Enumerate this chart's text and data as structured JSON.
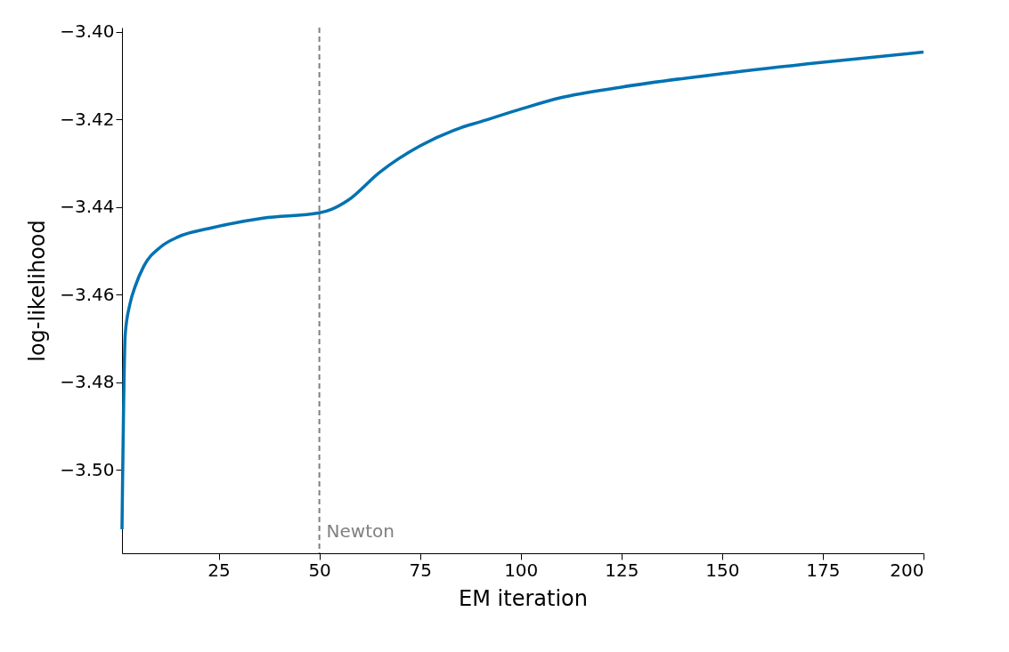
{
  "chart_data": {
    "type": "line",
    "xlabel": "EM iteration",
    "ylabel": "log-likelihood",
    "x": [
      1,
      1.8,
      3,
      4.3,
      6.4,
      10.7,
      14.9,
      23.4,
      36,
      50,
      53,
      57,
      65,
      75,
      85,
      90,
      100,
      110,
      125,
      150,
      175,
      200
    ],
    "series": [
      {
        "color": "#0072b2",
        "values": [
          -3.5135,
          -3.469,
          -3.462,
          -3.458,
          -3.4535,
          -3.449,
          -3.4468,
          -3.4447,
          -3.4425,
          -3.4413,
          -3.4405,
          -3.4385,
          -3.432,
          -3.426,
          -3.4219,
          -3.4205,
          -3.4176,
          -3.415,
          -3.4126,
          -3.4095,
          -3.4069,
          -3.4046
        ]
      }
    ],
    "xlim": [
      1,
      200
    ],
    "xticks": [
      25,
      50,
      75,
      100,
      125,
      150,
      175,
      200
    ],
    "ylim": [
      -3.519,
      -3.399
    ],
    "yticks": [
      {
        "value": -3.5,
        "label": "−3.50"
      },
      {
        "value": -3.48,
        "label": "−3.48"
      },
      {
        "value": -3.46,
        "label": "−3.46"
      },
      {
        "value": -3.44,
        "label": "−3.44"
      },
      {
        "value": -3.42,
        "label": "−3.42"
      },
      {
        "value": -3.4,
        "label": "−3.40"
      }
    ],
    "ref_lines": [
      {
        "axis": "x",
        "value": 50,
        "label": "Newton",
        "color": "#808080",
        "line_style": "dashed"
      }
    ],
    "grid": false,
    "marker": "none",
    "line_style": "solid"
  }
}
